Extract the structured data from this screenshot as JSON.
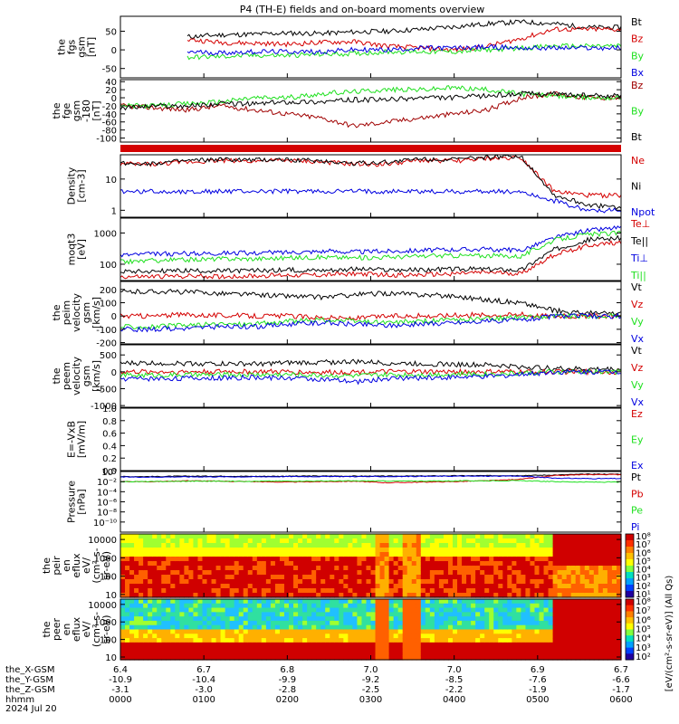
{
  "title": "P4 (TH-E) fields and on-board moments overview",
  "colors": {
    "black": "#000000",
    "red": "#d40000",
    "green": "#1fe01f",
    "blue": "#0000e0",
    "darkred": "#a00000"
  },
  "chart_data": [
    {
      "type": "line",
      "id": "fgs_gsm",
      "ylabel": [
        "the",
        "fgs",
        "gsm",
        "[nT]"
      ],
      "ylim": [
        -75,
        90
      ],
      "yticks": [
        "50",
        "0",
        "-50"
      ],
      "ytick_values": [
        50,
        0,
        -50
      ],
      "series": [
        {
          "name": "Bt",
          "color": "#000000",
          "values": [
            5,
            5,
            35,
            40,
            42,
            45,
            44,
            48,
            50,
            55,
            62,
            70,
            75,
            70,
            60,
            60
          ]
        },
        {
          "name": "Bz",
          "color": "#d40000",
          "values": [
            5,
            5,
            28,
            20,
            18,
            15,
            20,
            22,
            10,
            5,
            0,
            10,
            30,
            55,
            55,
            55
          ]
        },
        {
          "name": "By",
          "color": "#1fe01f",
          "values": [
            5,
            5,
            -20,
            -18,
            -15,
            -15,
            -12,
            -10,
            -5,
            -5,
            -5,
            0,
            5,
            10,
            10,
            10
          ]
        },
        {
          "name": "Bx",
          "color": "#0000e0",
          "values": [
            5,
            5,
            -5,
            -8,
            -5,
            -5,
            -5,
            0,
            0,
            5,
            5,
            8,
            5,
            5,
            5,
            5
          ]
        }
      ]
    },
    {
      "type": "line",
      "id": "fge_gsm",
      "ylabel": [
        "the",
        "fge",
        "gsm",
        "-180",
        "[nT]"
      ],
      "ylim": [
        -110,
        45
      ],
      "yticks": [
        "40",
        "20",
        "0",
        "-20",
        "-40",
        "-60",
        "-80",
        "-100"
      ],
      "ytick_values": [
        40,
        20,
        0,
        -20,
        -40,
        -60,
        -80,
        -100
      ],
      "series": [
        {
          "name": "Bz",
          "color": "#a00000",
          "values": [
            -20,
            -25,
            -30,
            -20,
            -30,
            -40,
            -50,
            -70,
            -60,
            -50,
            -40,
            -30,
            0,
            10,
            0,
            0
          ]
        },
        {
          "name": "By",
          "color": "#1fe01f",
          "values": [
            -20,
            -20,
            -15,
            -10,
            0,
            0,
            10,
            15,
            20,
            20,
            25,
            20,
            10,
            5,
            0,
            0
          ]
        },
        {
          "name": "Bt",
          "color": "#000000",
          "values": [
            -25,
            -20,
            -20,
            -15,
            -15,
            -10,
            -10,
            -5,
            -5,
            0,
            0,
            5,
            10,
            10,
            5,
            5
          ]
        }
      ]
    },
    {
      "type": "line",
      "id": "density",
      "ylabel": [
        "Density",
        "[cm-3]"
      ],
      "scale": "log",
      "ylim": [
        0.6,
        60
      ],
      "yticks": [
        "10",
        "1"
      ],
      "ytick_values": [
        10,
        1
      ],
      "series": [
        {
          "name": "Ne",
          "color": "#d40000",
          "values": [
            30,
            30,
            35,
            40,
            38,
            40,
            35,
            30,
            30,
            40,
            38,
            45,
            50,
            4,
            3,
            3
          ]
        },
        {
          "name": "Ni",
          "color": "#000000",
          "values": [
            32,
            32,
            38,
            42,
            40,
            42,
            38,
            32,
            35,
            45,
            42,
            50,
            55,
            3,
            1.5,
            1.2
          ]
        },
        {
          "name": "Npot",
          "color": "#0000e0",
          "values": [
            4,
            4,
            4,
            4,
            4,
            4,
            4,
            4,
            4,
            4,
            4,
            4,
            4,
            2,
            1,
            1
          ]
        }
      ]
    },
    {
      "type": "line",
      "id": "temperature",
      "ylabel": [
        "moqt3",
        "[eV]"
      ],
      "scale": "log",
      "ylim": [
        30,
        3000
      ],
      "yticks": [
        "1000",
        "100"
      ],
      "ytick_values": [
        1000,
        100
      ],
      "series": [
        {
          "name": "Te⊥",
          "color": "#d40000",
          "values": [
            40,
            40,
            42,
            40,
            42,
            45,
            45,
            50,
            45,
            45,
            50,
            55,
            50,
            200,
            400,
            500
          ]
        },
        {
          "name": "Te||",
          "color": "#000000",
          "values": [
            60,
            60,
            62,
            60,
            62,
            65,
            65,
            70,
            65,
            65,
            70,
            70,
            65,
            300,
            600,
            700
          ]
        },
        {
          "name": "Ti⊥",
          "color": "#0000e0",
          "values": [
            200,
            210,
            220,
            230,
            230,
            240,
            260,
            250,
            260,
            280,
            300,
            300,
            280,
            700,
            1200,
            1500
          ]
        },
        {
          "name": "Ti||",
          "color": "#1fe01f",
          "values": [
            120,
            130,
            140,
            150,
            150,
            160,
            170,
            160,
            170,
            180,
            190,
            190,
            180,
            600,
            900,
            1000
          ]
        }
      ]
    },
    {
      "type": "line",
      "id": "peim_velocity",
      "ylabel": [
        "the",
        "peim",
        "velocity",
        "gsm",
        "[km/s]"
      ],
      "ylim": [
        -210,
        260
      ],
      "yticks": [
        "200",
        "100",
        "0",
        "-100",
        "-200"
      ],
      "ytick_values": [
        200,
        100,
        0,
        -100,
        -200
      ],
      "series": [
        {
          "name": "Vt",
          "color": "#000000",
          "values": [
            180,
            185,
            180,
            170,
            160,
            150,
            140,
            160,
            170,
            160,
            150,
            120,
            100,
            40,
            20,
            20
          ]
        },
        {
          "name": "Vz",
          "color": "#d40000",
          "values": [
            0,
            0,
            10,
            5,
            0,
            0,
            -10,
            -20,
            0,
            0,
            5,
            10,
            10,
            0,
            0,
            0
          ]
        },
        {
          "name": "Vy",
          "color": "#1fe01f",
          "values": [
            -80,
            -80,
            -70,
            -60,
            -60,
            -40,
            -30,
            -40,
            -50,
            -40,
            -30,
            -20,
            -10,
            0,
            0,
            0
          ]
        },
        {
          "name": "Vx",
          "color": "#0000e0",
          "values": [
            -100,
            -100,
            -90,
            -80,
            -80,
            -60,
            -50,
            -60,
            -70,
            -60,
            -50,
            -40,
            -30,
            0,
            0,
            0
          ]
        }
      ]
    },
    {
      "type": "line",
      "id": "peem_velocity",
      "ylabel": [
        "the",
        "peem",
        "velocity",
        "gsm",
        "[km/s]"
      ],
      "ylim": [
        -1050,
        800
      ],
      "yticks": [
        "500",
        "0",
        "-500",
        "-1000"
      ],
      "ytick_values": [
        500,
        0,
        -500,
        -1000
      ],
      "series": [
        {
          "name": "Vt",
          "color": "#000000",
          "values": [
            250,
            260,
            250,
            240,
            230,
            260,
            280,
            300,
            260,
            240,
            220,
            200,
            150,
            100,
            80,
            80
          ]
        },
        {
          "name": "Vz",
          "color": "#d40000",
          "values": [
            0,
            0,
            0,
            10,
            0,
            0,
            -20,
            0,
            0,
            0,
            0,
            0,
            0,
            0,
            0,
            0
          ]
        },
        {
          "name": "Vy",
          "color": "#1fe01f",
          "values": [
            -100,
            -100,
            -90,
            -90,
            -80,
            -80,
            -100,
            -120,
            -90,
            -80,
            -70,
            -60,
            -40,
            0,
            0,
            0
          ]
        },
        {
          "name": "Vx",
          "color": "#0000e0",
          "values": [
            -200,
            -200,
            -190,
            -180,
            -170,
            -180,
            -220,
            -300,
            -200,
            -180,
            -160,
            -140,
            -80,
            0,
            0,
            0
          ]
        }
      ]
    },
    {
      "type": "line",
      "id": "efield",
      "ylabel": [
        "E=-VxB",
        "[mV/m]"
      ],
      "ylim": [
        0,
        1
      ],
      "yticks": [
        "1.0",
        "0.8",
        "0.6",
        "0.4",
        "0.2",
        "0.0"
      ],
      "ytick_values": [
        1,
        0.8,
        0.6,
        0.4,
        0.2,
        0
      ],
      "series": [
        {
          "name": "Ez",
          "color": "#d40000",
          "values": []
        },
        {
          "name": "Ey",
          "color": "#1fe01f",
          "values": []
        },
        {
          "name": "Ex",
          "color": "#0000e0",
          "values": []
        }
      ]
    },
    {
      "type": "line",
      "id": "pressure",
      "ylabel": [
        "Pressure",
        "[nPa]"
      ],
      "scale": "log",
      "ylim": [
        1e-12,
        1
      ],
      "yticks": [
        "10⁰",
        "10⁻²",
        "10⁻⁴",
        "10⁻⁶",
        "10⁻⁸",
        "10⁻¹⁰"
      ],
      "ytick_values": [
        1,
        0.01,
        0.0001,
        1e-06,
        1e-08,
        1e-10
      ],
      "series": [
        {
          "name": "Pt",
          "color": "#000000",
          "values": [
            0.1,
            0.1,
            0.12,
            0.12,
            0.11,
            0.12,
            0.13,
            0.12,
            0.12,
            0.13,
            0.14,
            0.15,
            0.16,
            0.2,
            0.3,
            0.3
          ]
        },
        {
          "name": "Pb",
          "color": "#d40000",
          "values": [
            0.01,
            0.01,
            0.015,
            0.012,
            0.01,
            0.008,
            0.01,
            0.012,
            0.006,
            0.008,
            0.01,
            0.015,
            0.03,
            0.15,
            0.25,
            0.25
          ]
        },
        {
          "name": "Pe",
          "color": "#1fe01f",
          "values": [
            0.01,
            0.01,
            0.012,
            0.012,
            0.012,
            0.013,
            0.013,
            0.014,
            0.013,
            0.013,
            0.014,
            0.015,
            0.015,
            0.01,
            0.008,
            0.008
          ]
        },
        {
          "name": "Pi",
          "color": "#0000e0",
          "values": [
            0.08,
            0.08,
            0.09,
            0.09,
            0.09,
            0.1,
            0.1,
            0.1,
            0.1,
            0.11,
            0.12,
            0.12,
            0.12,
            0.05,
            0.04,
            0.04
          ]
        }
      ]
    },
    {
      "type": "heatmap",
      "id": "peir_eflux",
      "ylabel": [
        "the",
        "peir",
        "en",
        "eflux",
        "eV/",
        "(cm²-s-",
        "sr-eV)"
      ],
      "scale": "log",
      "ylim": [
        7,
        20000
      ],
      "yticks": [
        "10000",
        "1000",
        "100",
        "10"
      ],
      "ytick_values": [
        10000,
        1000,
        100,
        10
      ],
      "colorbar_ticks": [
        "10⁸",
        "10⁷",
        "10⁶",
        "10⁵",
        "10⁴",
        "10³",
        "10²",
        "10¹"
      ]
    },
    {
      "type": "heatmap",
      "id": "peer_eflux",
      "ylabel": [
        "the",
        "peer",
        "en",
        "eflux",
        "eV/",
        "(cm²-s-",
        "sr-eV)"
      ],
      "scale": "log",
      "ylim": [
        7,
        20000
      ],
      "yticks": [
        "10000",
        "1000",
        "100",
        "10"
      ],
      "ytick_values": [
        10000,
        1000,
        100,
        10
      ],
      "colorbar_ticks": [
        "10⁸",
        "10⁷",
        "10⁶",
        "10⁵",
        "10⁴",
        "10³",
        "10²"
      ]
    }
  ],
  "colorbar_label": "[eV/(cm²-s-sr-eV)] (All Qs)",
  "footer": {
    "rows": [
      {
        "label": "the_X-GSM",
        "values": [
          "6.4",
          "6.7",
          "6.8",
          "7.0",
          "7.0",
          "6.9",
          "6.7"
        ]
      },
      {
        "label": "the_Y-GSM",
        "values": [
          "-10.9",
          "-10.4",
          "-9.9",
          "-9.2",
          "-8.5",
          "-7.6",
          "-6.6"
        ]
      },
      {
        "label": "the_Z-GSM",
        "values": [
          "-3.1",
          "-3.0",
          "-2.8",
          "-2.5",
          "-2.2",
          "-1.9",
          "-1.7"
        ]
      },
      {
        "label": "hhmm",
        "values": [
          "0000",
          "0100",
          "0200",
          "0300",
          "0400",
          "0500",
          "0600"
        ]
      }
    ],
    "date": "2024 Jul 20"
  }
}
